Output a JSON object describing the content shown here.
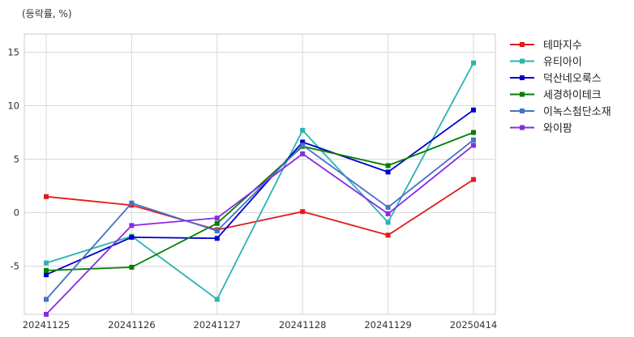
{
  "unit_label": "(등락률, %)",
  "chart_data": {
    "type": "line",
    "categories": [
      "20241125",
      "20241126",
      "20241127",
      "20241128",
      "20241129",
      "20250414"
    ],
    "ylim": [
      -9.5,
      16.7
    ],
    "yticks": [
      -5,
      0,
      5,
      10,
      15
    ],
    "ytick_labels": [
      "-5",
      "0",
      "5",
      "10",
      "15"
    ],
    "grid": true,
    "legend_position": "right",
    "series": [
      {
        "name": "테마지수",
        "color": "#e31a1c",
        "values": [
          1.5,
          0.7,
          -1.6,
          0.1,
          -2.1,
          3.1
        ]
      },
      {
        "name": "유티아이",
        "color": "#2ab3b0",
        "values": [
          -4.7,
          -2.2,
          -8.1,
          7.7,
          -0.9,
          14.0
        ]
      },
      {
        "name": "덕산네오룩스",
        "color": "#0000cc",
        "values": [
          -5.8,
          -2.3,
          -2.4,
          6.6,
          3.8,
          9.6
        ]
      },
      {
        "name": "세경하이테크",
        "color": "#008000",
        "values": [
          -5.4,
          -5.1,
          -1.0,
          6.2,
          4.4,
          7.5
        ]
      },
      {
        "name": "이녹스첨단소재",
        "color": "#4472c4",
        "values": [
          -8.1,
          0.9,
          -1.7,
          6.3,
          0.5,
          6.8
        ]
      },
      {
        "name": "와이팜",
        "color": "#8a2be2",
        "values": [
          -9.5,
          -1.2,
          -0.5,
          5.5,
          -0.1,
          6.3
        ]
      }
    ]
  }
}
